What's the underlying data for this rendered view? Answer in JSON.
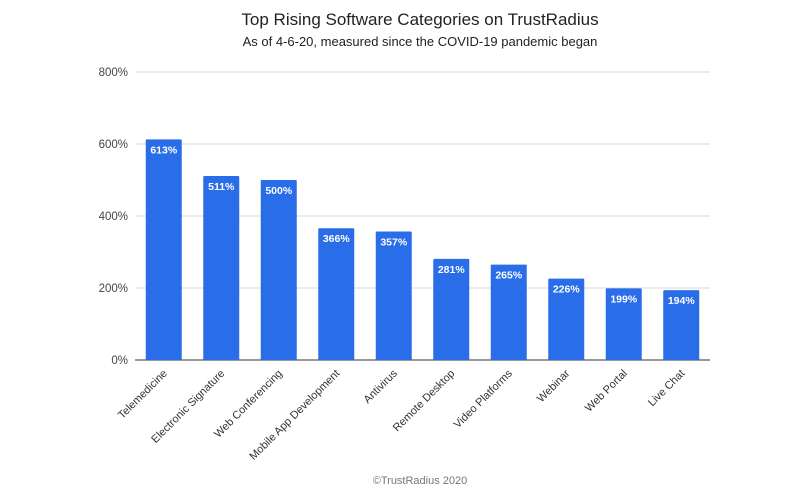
{
  "chart_data": {
    "type": "bar",
    "title": "Top Rising Software Categories on TrustRadius",
    "subtitle": "As of 4-6-20, measured since the COVID-19 pandemic began",
    "xlabel": "",
    "ylabel": "",
    "categories": [
      "Telemedicine",
      "Electronic Signature",
      "Web Conferencing",
      "Mobile App Development",
      "Antivirus",
      "Remote Desktop",
      "Video Platforms",
      "Webinar",
      "Web Portal",
      "Live Chat"
    ],
    "values": [
      613,
      511,
      500,
      366,
      357,
      281,
      265,
      226,
      199,
      194
    ],
    "data_labels": [
      "613%",
      "511%",
      "500%",
      "366%",
      "357%",
      "281%",
      "265%",
      "226%",
      "199%",
      "194%"
    ],
    "ylim": [
      0,
      800
    ],
    "yticks": [
      0,
      200,
      400,
      600,
      800
    ],
    "ytick_labels": [
      "0%",
      "200%",
      "400%",
      "600%",
      "800%"
    ],
    "grid": true,
    "legend": "none",
    "bar_color": "#2a6de8",
    "credit": "©TrustRadius 2020"
  }
}
